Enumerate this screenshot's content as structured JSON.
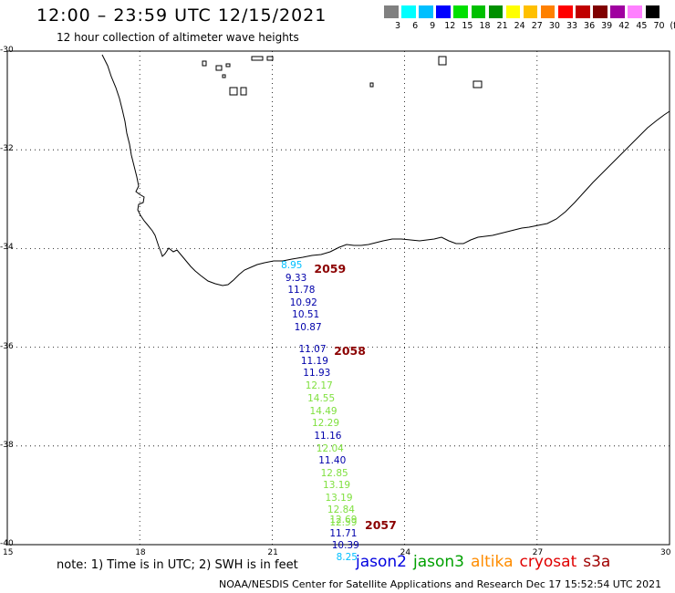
{
  "header": {
    "title": "12:00 – 23:59 UTC 12/15/2021",
    "subtitle": "12 hour collection of altimeter wave heights"
  },
  "color_scale": {
    "colors": [
      "#808080",
      "#00ffff",
      "#00bfff",
      "#0000ff",
      "#00e000",
      "#00c000",
      "#009000",
      "#ffff00",
      "#ffc000",
      "#ff8000",
      "#ff0000",
      "#c00000",
      "#800000",
      "#a000a0",
      "#ff80ff",
      "#000000"
    ],
    "labels": [
      "3",
      "6",
      "9",
      "12",
      "15",
      "18",
      "21",
      "24",
      "27",
      "30",
      "33",
      "36",
      "39",
      "42",
      "45",
      "70",
      "(ft)"
    ]
  },
  "axes": {
    "lat_labels": [
      "-30",
      "-32",
      "-34",
      "-36",
      "-38",
      "-40"
    ],
    "lon_labels": [
      "15",
      "18",
      "21",
      "24",
      "27",
      "30"
    ]
  },
  "observations": [
    {
      "text": "8.95",
      "lat": -34.35,
      "lon": 21.2,
      "color": "#00bfff"
    },
    {
      "text": "9.33",
      "lat": -34.6,
      "lon": 21.3,
      "color": "#0000aa"
    },
    {
      "text": "11.78",
      "lat": -34.84,
      "lon": 21.35,
      "color": "#0000aa"
    },
    {
      "text": "10.92",
      "lat": -35.1,
      "lon": 21.4,
      "color": "#0000aa"
    },
    {
      "text": "10.51",
      "lat": -35.35,
      "lon": 21.45,
      "color": "#0000aa"
    },
    {
      "text": "10.87",
      "lat": -35.6,
      "lon": 21.5,
      "color": "#0000aa"
    },
    {
      "text": "11.07",
      "lat": -36.05,
      "lon": 21.6,
      "color": "#0000aa"
    },
    {
      "text": "11.19",
      "lat": -36.28,
      "lon": 21.65,
      "color": "#0000aa"
    },
    {
      "text": "11.93",
      "lat": -36.53,
      "lon": 21.7,
      "color": "#0000aa"
    },
    {
      "text": "12.17",
      "lat": -36.78,
      "lon": 21.75,
      "color": "#80e040"
    },
    {
      "text": "14.55",
      "lat": -37.05,
      "lon": 21.8,
      "color": "#80e040"
    },
    {
      "text": "14.49",
      "lat": -37.3,
      "lon": 21.85,
      "color": "#80e040"
    },
    {
      "text": "12.29",
      "lat": -37.55,
      "lon": 21.9,
      "color": "#80e040"
    },
    {
      "text": "11.16",
      "lat": -37.8,
      "lon": 21.95,
      "color": "#0000aa"
    },
    {
      "text": "12.04",
      "lat": -38.05,
      "lon": 22.0,
      "color": "#80e040"
    },
    {
      "text": "11.40",
      "lat": -38.3,
      "lon": 22.05,
      "color": "#0000aa"
    },
    {
      "text": "12.85",
      "lat": -38.55,
      "lon": 22.1,
      "color": "#80e040"
    },
    {
      "text": "13.19",
      "lat": -38.8,
      "lon": 22.15,
      "color": "#80e040"
    },
    {
      "text": "13.19",
      "lat": -39.05,
      "lon": 22.2,
      "color": "#80e040"
    },
    {
      "text": "12.84",
      "lat": -39.3,
      "lon": 22.25,
      "color": "#80e040"
    },
    {
      "text": "12.69",
      "lat": -39.5,
      "lon": 22.3,
      "color": "#80e040"
    },
    {
      "text": "12.59",
      "lat": -39.55,
      "lon": 22.3,
      "color": "#80e040"
    },
    {
      "text": "11.71",
      "lat": -39.78,
      "lon": 22.3,
      "color": "#0000aa"
    },
    {
      "text": "10.39",
      "lat": -40.02,
      "lon": 22.35,
      "color": "#0000aa"
    },
    {
      "text": "8.25",
      "lat": -40.26,
      "lon": 22.45,
      "color": "#00bfff"
    }
  ],
  "pass_labels": [
    {
      "text": "2059",
      "lat": -34.4,
      "lon": 21.95
    },
    {
      "text": "2058",
      "lat": -36.07,
      "lon": 22.4
    },
    {
      "text": "2057",
      "lat": -39.6,
      "lon": 23.1
    }
  ],
  "footer": {
    "note": "note: 1) Time is in UTC; 2) SWH is in feet",
    "satellites": [
      {
        "name": "jason2",
        "color": "#0000e0"
      },
      {
        "name": "jason3",
        "color": "#00a000"
      },
      {
        "name": "altika",
        "color": "#ff8c00"
      },
      {
        "name": "cryosat",
        "color": "#e00000"
      },
      {
        "name": "s3a",
        "color": "#a00000"
      }
    ],
    "credit": "NOAA/NESDIS Center for Satellite Applications and Research    Dec 17 15:52:54 UTC 2021"
  }
}
